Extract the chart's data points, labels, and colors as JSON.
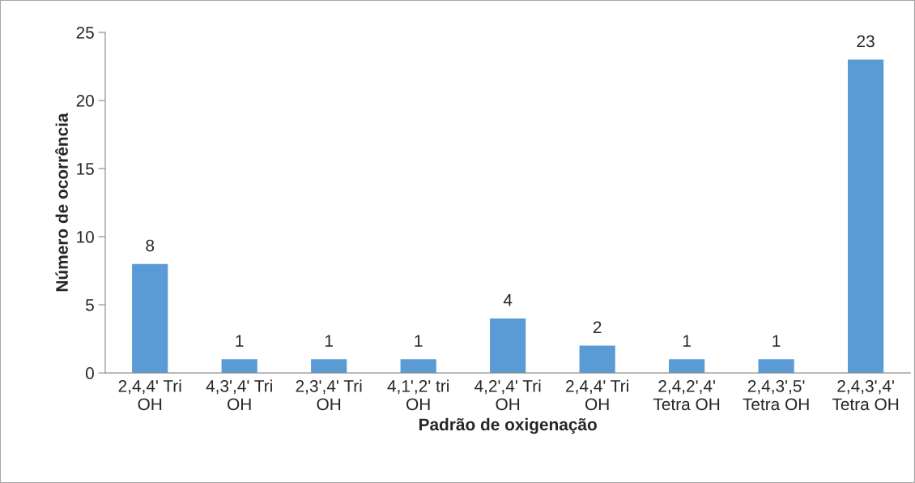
{
  "chart_data": {
    "type": "bar",
    "categories": [
      "2,4,4' Tri\nOH",
      "4,3',4' Tri\nOH",
      "2,3',4' Tri\nOH",
      "4,1',2' tri\nOH",
      "4,2',4' Tri\nOH",
      "2,4,4' Tri\nOH",
      "2,4,2',4'\nTetra OH",
      "2,4,3',5'\nTetra OH",
      "2,4,3',4'\nTetra OH"
    ],
    "values": [
      8,
      1,
      1,
      1,
      4,
      2,
      1,
      1,
      23
    ],
    "color": "#5b9bd5",
    "xlabel": "Padrão de oxigenação",
    "ylabel": "Número de ocorrência",
    "ylim": [
      0,
      25
    ],
    "yticks": [
      0,
      5,
      10,
      15,
      20,
      25
    ],
    "data_labels": true,
    "grid": false,
    "legend": false
  }
}
